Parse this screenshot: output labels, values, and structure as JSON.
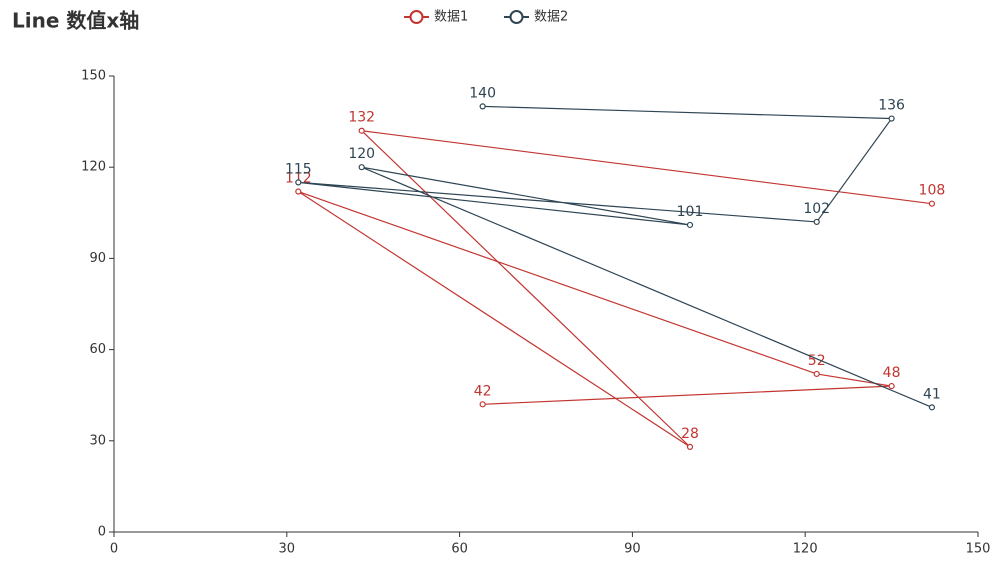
{
  "chart_data": {
    "type": "line",
    "title": "Line 数值x轴",
    "x": [
      64,
      135,
      122,
      32,
      100,
      43,
      142
    ],
    "series": [
      {
        "name": "数据1",
        "color": "#c23531",
        "values": [
          42,
          48,
          52,
          112,
          28,
          132,
          108
        ]
      },
      {
        "name": "数据2",
        "color": "#2f4554",
        "values": [
          140,
          136,
          102,
          115,
          101,
          120,
          41
        ]
      }
    ],
    "xlim": [
      0,
      150
    ],
    "xticks": [
      0,
      30,
      60,
      90,
      120,
      150
    ],
    "ylim": [
      0,
      150
    ],
    "yticks": [
      0,
      30,
      60,
      90,
      120,
      150
    ],
    "grid": false,
    "legend": "top"
  }
}
